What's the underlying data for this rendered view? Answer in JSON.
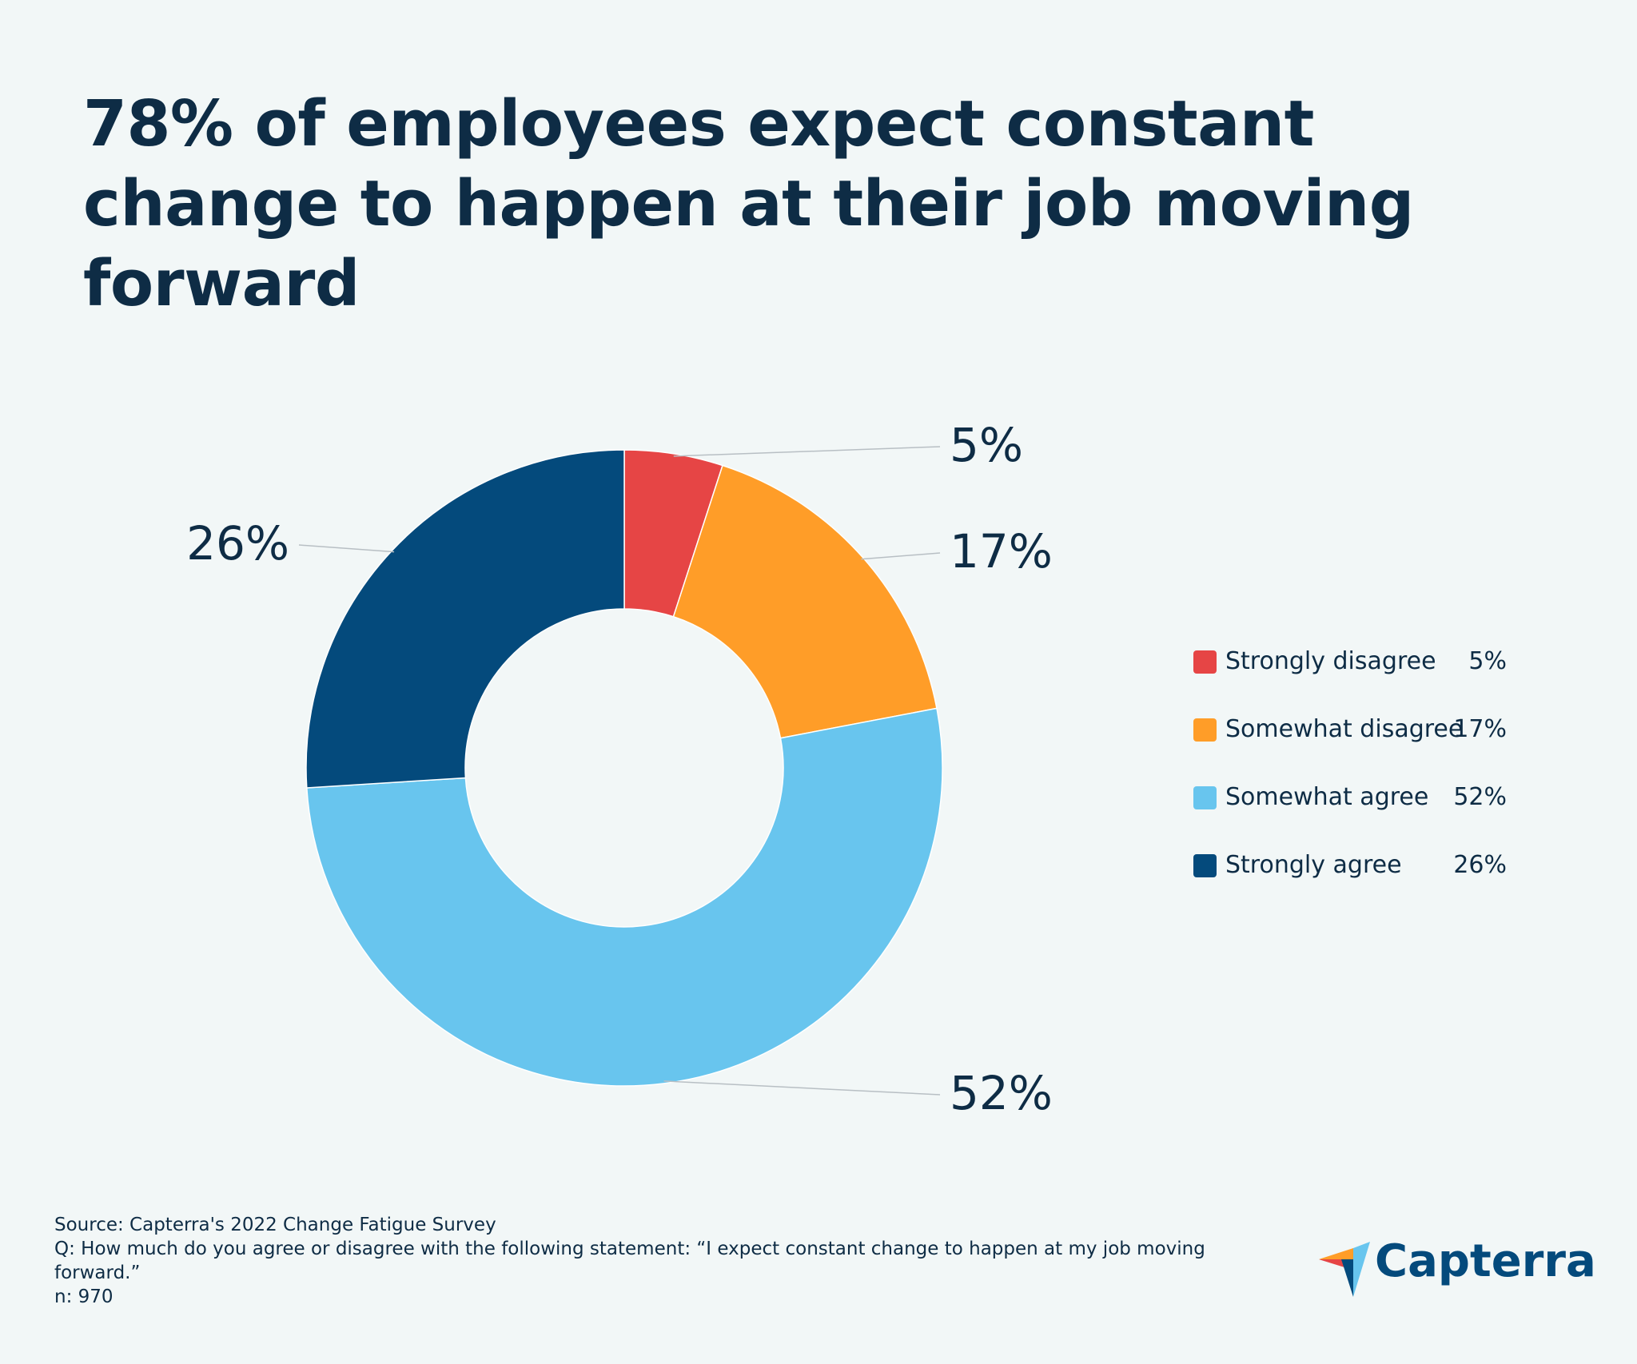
{
  "title": "78% of employees expect constant change to happen at their job moving forward",
  "chart_data": {
    "type": "pie",
    "variant": "donut",
    "title": "78% of employees expect constant change to happen at their job moving forward",
    "categories": [
      "Strongly disagree",
      "Somewhat disagree",
      "Somewhat agree",
      "Strongly agree"
    ],
    "values": [
      5,
      17,
      52,
      26
    ],
    "data_labels": [
      "5%",
      "17%",
      "52%",
      "26%"
    ],
    "colors": [
      "#e64545",
      "#ff9d28",
      "#68c5ee",
      "#044a7c"
    ],
    "legend_position": "right",
    "unit": "%"
  },
  "legend": [
    {
      "label": "Strongly disagree",
      "value": "5%"
    },
    {
      "label": "Somewhat disagree",
      "value": "17%"
    },
    {
      "label": "Somewhat agree",
      "value": "52%"
    },
    {
      "label": "Strongly agree",
      "value": "26%"
    }
  ],
  "footer": {
    "source": "Source: Capterra's 2022 Change Fatigue Survey",
    "question": "Q: How much do you agree or disagree with the following statement: “I expect constant change to happen at my job moving forward.”",
    "n": "n: 970"
  },
  "logo": {
    "text": "Capterra"
  }
}
